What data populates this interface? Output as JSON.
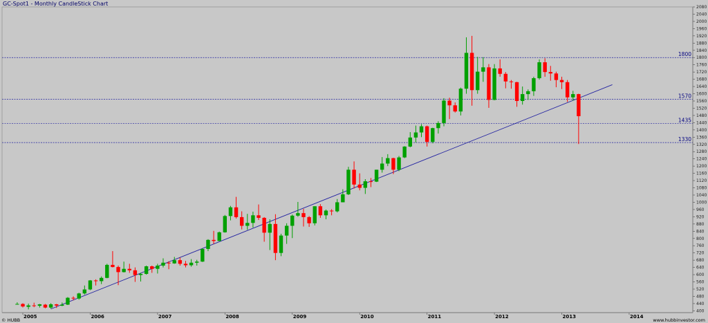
{
  "header": {
    "title": "GC-Spot1 - Monthly CandleStick Chart"
  },
  "footer": {
    "left": "© HUBB",
    "right": "www.hubbinvestor.com"
  },
  "colors": {
    "background": "#c8c8c8",
    "up": "#00a000",
    "down": "#ff0000",
    "trend": "#2020a0",
    "level": "#2020a0"
  },
  "chart_data": {
    "type": "candlestick",
    "y_ticks": [
      400,
      440,
      480,
      520,
      560,
      600,
      640,
      680,
      720,
      760,
      800,
      840,
      880,
      920,
      960,
      1000,
      1040,
      1080,
      1120,
      1160,
      1200,
      1240,
      1280,
      1320,
      1360,
      1400,
      1440,
      1480,
      1520,
      1560,
      1600,
      1640,
      1680,
      1720,
      1760,
      1800,
      1840,
      1880,
      1920,
      1960,
      2000,
      2040,
      2080
    ],
    "ylim": [
      390,
      2080
    ],
    "x_labels": [
      "2005",
      "2006",
      "2007",
      "2008",
      "2009",
      "2010",
      "2011",
      "2012",
      "2013",
      "2014"
    ],
    "levels": [
      1800,
      1570,
      1435,
      1330
    ],
    "trendline": {
      "start": {
        "date": "2005-06",
        "value": 410
      },
      "end": {
        "date": "2013-10",
        "value": 1650
      }
    },
    "candles": [
      {
        "d": "2004-12",
        "o": 438,
        "h": 447,
        "l": 434,
        "c": 438
      },
      {
        "d": "2005-01",
        "o": 438,
        "h": 442,
        "l": 418,
        "c": 424
      },
      {
        "d": "2005-02",
        "o": 422,
        "h": 440,
        "l": 408,
        "c": 430
      },
      {
        "d": "2005-03",
        "o": 430,
        "h": 445,
        "l": 420,
        "c": 428
      },
      {
        "d": "2005-04",
        "o": 428,
        "h": 438,
        "l": 418,
        "c": 436
      },
      {
        "d": "2005-05",
        "o": 434,
        "h": 438,
        "l": 414,
        "c": 418
      },
      {
        "d": "2005-06",
        "o": 418,
        "h": 442,
        "l": 412,
        "c": 436
      },
      {
        "d": "2005-07",
        "o": 436,
        "h": 438,
        "l": 416,
        "c": 429
      },
      {
        "d": "2005-08",
        "o": 428,
        "h": 446,
        "l": 426,
        "c": 434
      },
      {
        "d": "2005-09",
        "o": 434,
        "h": 476,
        "l": 432,
        "c": 472
      },
      {
        "d": "2005-10",
        "o": 472,
        "h": 480,
        "l": 458,
        "c": 468
      },
      {
        "d": "2005-11",
        "o": 468,
        "h": 500,
        "l": 462,
        "c": 496
      },
      {
        "d": "2005-12",
        "o": 496,
        "h": 540,
        "l": 490,
        "c": 518
      },
      {
        "d": "2006-01",
        "o": 518,
        "h": 570,
        "l": 514,
        "c": 568
      },
      {
        "d": "2006-02",
        "o": 568,
        "h": 574,
        "l": 540,
        "c": 564
      },
      {
        "d": "2006-03",
        "o": 564,
        "h": 590,
        "l": 548,
        "c": 582
      },
      {
        "d": "2006-04",
        "o": 582,
        "h": 660,
        "l": 580,
        "c": 654
      },
      {
        "d": "2006-05",
        "o": 654,
        "h": 730,
        "l": 640,
        "c": 642
      },
      {
        "d": "2006-06",
        "o": 642,
        "h": 650,
        "l": 542,
        "c": 614
      },
      {
        "d": "2006-07",
        "o": 614,
        "h": 672,
        "l": 612,
        "c": 632
      },
      {
        "d": "2006-08",
        "o": 632,
        "h": 660,
        "l": 610,
        "c": 624
      },
      {
        "d": "2006-09",
        "o": 624,
        "h": 640,
        "l": 560,
        "c": 598
      },
      {
        "d": "2006-10",
        "o": 598,
        "h": 610,
        "l": 562,
        "c": 604
      },
      {
        "d": "2006-11",
        "o": 604,
        "h": 650,
        "l": 600,
        "c": 646
      },
      {
        "d": "2006-12",
        "o": 646,
        "h": 650,
        "l": 610,
        "c": 632
      },
      {
        "d": "2007-01",
        "o": 632,
        "h": 660,
        "l": 606,
        "c": 650
      },
      {
        "d": "2007-02",
        "o": 650,
        "h": 690,
        "l": 640,
        "c": 666
      },
      {
        "d": "2007-03",
        "o": 666,
        "h": 674,
        "l": 630,
        "c": 662
      },
      {
        "d": "2007-04",
        "o": 662,
        "h": 698,
        "l": 660,
        "c": 680
      },
      {
        "d": "2007-05",
        "o": 680,
        "h": 694,
        "l": 650,
        "c": 660
      },
      {
        "d": "2007-06",
        "o": 660,
        "h": 676,
        "l": 640,
        "c": 652
      },
      {
        "d": "2007-07",
        "o": 652,
        "h": 686,
        "l": 644,
        "c": 666
      },
      {
        "d": "2007-08",
        "o": 666,
        "h": 682,
        "l": 650,
        "c": 672
      },
      {
        "d": "2007-09",
        "o": 672,
        "h": 746,
        "l": 670,
        "c": 742
      },
      {
        "d": "2007-10",
        "o": 742,
        "h": 796,
        "l": 730,
        "c": 792
      },
      {
        "d": "2007-11",
        "o": 792,
        "h": 842,
        "l": 770,
        "c": 786
      },
      {
        "d": "2007-12",
        "o": 786,
        "h": 838,
        "l": 786,
        "c": 834
      },
      {
        "d": "2008-01",
        "o": 834,
        "h": 930,
        "l": 832,
        "c": 924
      },
      {
        "d": "2008-02",
        "o": 924,
        "h": 980,
        "l": 900,
        "c": 972
      },
      {
        "d": "2008-03",
        "o": 972,
        "h": 1030,
        "l": 910,
        "c": 918
      },
      {
        "d": "2008-04",
        "o": 918,
        "h": 950,
        "l": 850,
        "c": 870
      },
      {
        "d": "2008-05",
        "o": 870,
        "h": 936,
        "l": 848,
        "c": 886
      },
      {
        "d": "2008-06",
        "o": 886,
        "h": 948,
        "l": 860,
        "c": 928
      },
      {
        "d": "2008-07",
        "o": 928,
        "h": 988,
        "l": 902,
        "c": 914
      },
      {
        "d": "2008-08",
        "o": 914,
        "h": 918,
        "l": 782,
        "c": 832
      },
      {
        "d": "2008-09",
        "o": 832,
        "h": 906,
        "l": 736,
        "c": 880
      },
      {
        "d": "2008-10",
        "o": 880,
        "h": 934,
        "l": 680,
        "c": 720
      },
      {
        "d": "2008-11",
        "o": 720,
        "h": 826,
        "l": 702,
        "c": 816
      },
      {
        "d": "2008-12",
        "o": 816,
        "h": 884,
        "l": 770,
        "c": 870
      },
      {
        "d": "2009-01",
        "o": 870,
        "h": 932,
        "l": 802,
        "c": 926
      },
      {
        "d": "2009-02",
        "o": 926,
        "h": 1002,
        "l": 920,
        "c": 940
      },
      {
        "d": "2009-03",
        "o": 940,
        "h": 964,
        "l": 866,
        "c": 918
      },
      {
        "d": "2009-04",
        "o": 918,
        "h": 924,
        "l": 864,
        "c": 884
      },
      {
        "d": "2009-05",
        "o": 884,
        "h": 978,
        "l": 872,
        "c": 978
      },
      {
        "d": "2009-06",
        "o": 978,
        "h": 990,
        "l": 914,
        "c": 928
      },
      {
        "d": "2009-07",
        "o": 928,
        "h": 960,
        "l": 906,
        "c": 954
      },
      {
        "d": "2009-08",
        "o": 954,
        "h": 962,
        "l": 928,
        "c": 950
      },
      {
        "d": "2009-09",
        "o": 950,
        "h": 1018,
        "l": 944,
        "c": 1000
      },
      {
        "d": "2009-10",
        "o": 1000,
        "h": 1072,
        "l": 1000,
        "c": 1044
      },
      {
        "d": "2009-11",
        "o": 1044,
        "h": 1196,
        "l": 1040,
        "c": 1180
      },
      {
        "d": "2009-12",
        "o": 1180,
        "h": 1226,
        "l": 1076,
        "c": 1098
      },
      {
        "d": "2010-01",
        "o": 1098,
        "h": 1160,
        "l": 1066,
        "c": 1080
      },
      {
        "d": "2010-02",
        "o": 1080,
        "h": 1128,
        "l": 1046,
        "c": 1116
      },
      {
        "d": "2010-03",
        "o": 1116,
        "h": 1134,
        "l": 1084,
        "c": 1114
      },
      {
        "d": "2010-04",
        "o": 1114,
        "h": 1180,
        "l": 1112,
        "c": 1180
      },
      {
        "d": "2010-05",
        "o": 1180,
        "h": 1250,
        "l": 1164,
        "c": 1214
      },
      {
        "d": "2010-06",
        "o": 1214,
        "h": 1266,
        "l": 1200,
        "c": 1244
      },
      {
        "d": "2010-07",
        "o": 1244,
        "h": 1246,
        "l": 1156,
        "c": 1180
      },
      {
        "d": "2010-08",
        "o": 1180,
        "h": 1256,
        "l": 1172,
        "c": 1248
      },
      {
        "d": "2010-09",
        "o": 1248,
        "h": 1310,
        "l": 1244,
        "c": 1308
      },
      {
        "d": "2010-10",
        "o": 1308,
        "h": 1388,
        "l": 1304,
        "c": 1358
      },
      {
        "d": "2010-11",
        "o": 1358,
        "h": 1424,
        "l": 1330,
        "c": 1386
      },
      {
        "d": "2010-12",
        "o": 1386,
        "h": 1432,
        "l": 1360,
        "c": 1420
      },
      {
        "d": "2011-01",
        "o": 1420,
        "h": 1424,
        "l": 1308,
        "c": 1334
      },
      {
        "d": "2011-02",
        "o": 1334,
        "h": 1412,
        "l": 1326,
        "c": 1410
      },
      {
        "d": "2011-03",
        "o": 1410,
        "h": 1448,
        "l": 1380,
        "c": 1438
      },
      {
        "d": "2011-04",
        "o": 1438,
        "h": 1576,
        "l": 1420,
        "c": 1562
      },
      {
        "d": "2011-05",
        "o": 1562,
        "h": 1578,
        "l": 1460,
        "c": 1536
      },
      {
        "d": "2011-06",
        "o": 1536,
        "h": 1552,
        "l": 1496,
        "c": 1502
      },
      {
        "d": "2011-07",
        "o": 1502,
        "h": 1634,
        "l": 1480,
        "c": 1628
      },
      {
        "d": "2011-08",
        "o": 1628,
        "h": 1912,
        "l": 1600,
        "c": 1826
      },
      {
        "d": "2011-09",
        "o": 1826,
        "h": 1920,
        "l": 1534,
        "c": 1620
      },
      {
        "d": "2011-10",
        "o": 1620,
        "h": 1804,
        "l": 1600,
        "c": 1722
      },
      {
        "d": "2011-11",
        "o": 1722,
        "h": 1802,
        "l": 1666,
        "c": 1746
      },
      {
        "d": "2011-12",
        "o": 1746,
        "h": 1764,
        "l": 1522,
        "c": 1566
      },
      {
        "d": "2012-01",
        "o": 1566,
        "h": 1764,
        "l": 1564,
        "c": 1740
      },
      {
        "d": "2012-02",
        "o": 1740,
        "h": 1790,
        "l": 1694,
        "c": 1710
      },
      {
        "d": "2012-03",
        "o": 1710,
        "h": 1720,
        "l": 1630,
        "c": 1668
      },
      {
        "d": "2012-04",
        "o": 1668,
        "h": 1676,
        "l": 1628,
        "c": 1664
      },
      {
        "d": "2012-05",
        "o": 1664,
        "h": 1666,
        "l": 1528,
        "c": 1560
      },
      {
        "d": "2012-06",
        "o": 1560,
        "h": 1640,
        "l": 1540,
        "c": 1598
      },
      {
        "d": "2012-07",
        "o": 1598,
        "h": 1624,
        "l": 1566,
        "c": 1614
      },
      {
        "d": "2012-08",
        "o": 1614,
        "h": 1694,
        "l": 1588,
        "c": 1686
      },
      {
        "d": "2012-09",
        "o": 1686,
        "h": 1790,
        "l": 1678,
        "c": 1774
      },
      {
        "d": "2012-10",
        "o": 1774,
        "h": 1796,
        "l": 1694,
        "c": 1720
      },
      {
        "d": "2012-11",
        "o": 1720,
        "h": 1754,
        "l": 1672,
        "c": 1712
      },
      {
        "d": "2012-12",
        "o": 1712,
        "h": 1722,
        "l": 1636,
        "c": 1676
      },
      {
        "d": "2013-01",
        "o": 1676,
        "h": 1694,
        "l": 1626,
        "c": 1664
      },
      {
        "d": "2013-02",
        "o": 1664,
        "h": 1676,
        "l": 1555,
        "c": 1580
      },
      {
        "d": "2013-03",
        "o": 1580,
        "h": 1616,
        "l": 1562,
        "c": 1598
      },
      {
        "d": "2013-04",
        "o": 1598,
        "h": 1600,
        "l": 1322,
        "c": 1476
      }
    ]
  }
}
